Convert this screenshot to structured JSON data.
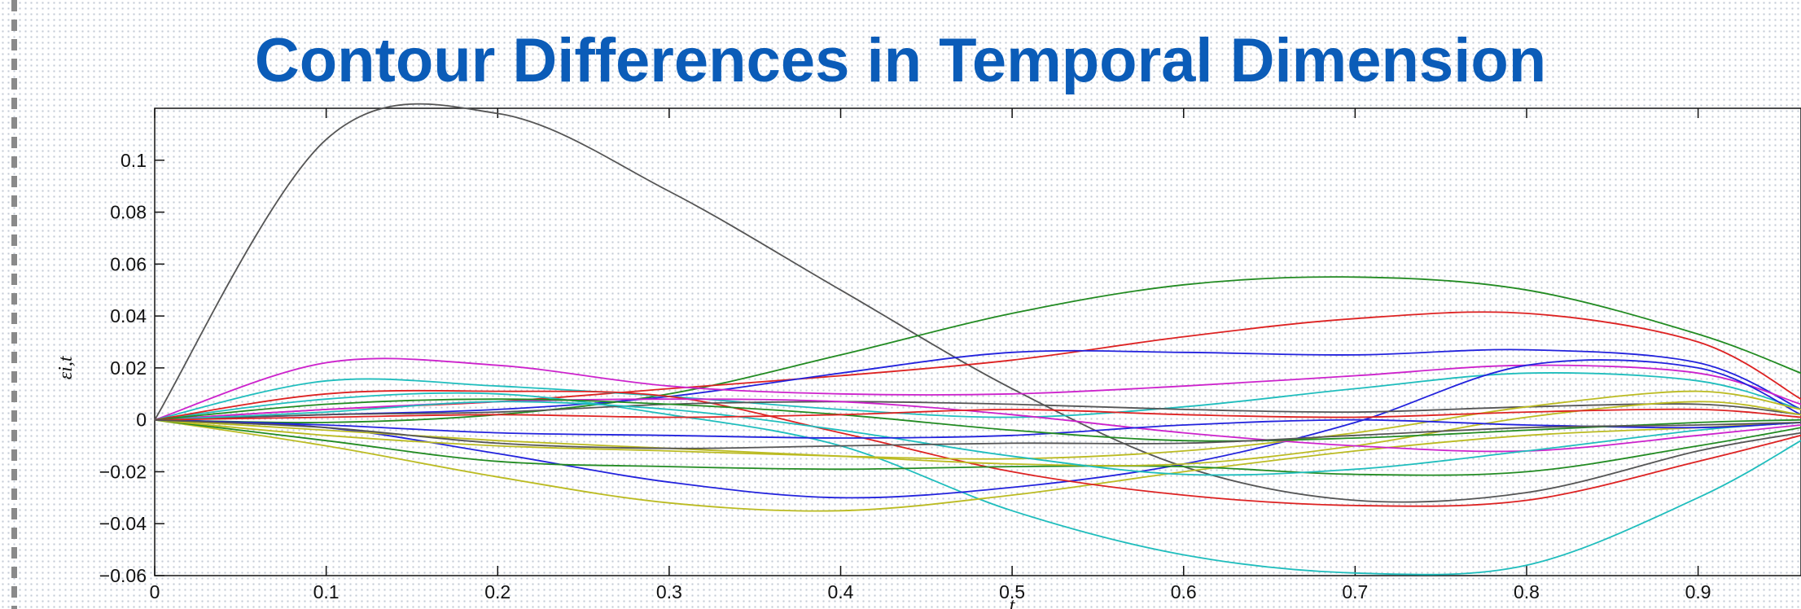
{
  "slide": {
    "title": "Contour Differences in Temporal Dimension"
  },
  "chart_data": {
    "type": "line",
    "title": "",
    "xlabel": "t",
    "ylabel": "εi,t",
    "xlim": [
      0,
      0.96
    ],
    "ylim": [
      -0.06,
      0.12
    ],
    "xticks": [
      "0",
      "0.1",
      "0.2",
      "0.3",
      "0.4",
      "0.5",
      "0.6",
      "0.7",
      "0.8",
      "0.9"
    ],
    "yticks": [
      "−0.06",
      "−0.04",
      "−0.02",
      "0",
      "0.02",
      "0.04",
      "0.06",
      "0.08",
      "0.1"
    ],
    "grid": false,
    "legend": "none",
    "x": [
      0,
      0.1,
      0.2,
      0.3,
      0.4,
      0.5,
      0.6,
      0.7,
      0.8,
      0.9,
      0.96
    ],
    "series": [
      {
        "color": "#555555",
        "values": [
          0,
          0.108,
          0.118,
          0.088,
          0.05,
          0.012,
          -0.018,
          -0.031,
          -0.028,
          -0.012,
          -0.005
        ]
      },
      {
        "color": "#228b22",
        "values": [
          0,
          -0.001,
          0.002,
          0.01,
          0.025,
          0.041,
          0.052,
          0.055,
          0.05,
          0.033,
          0.018
        ]
      },
      {
        "color": "#dd2222",
        "values": [
          0,
          0.004,
          0.007,
          0.012,
          0.017,
          0.023,
          0.032,
          0.039,
          0.041,
          0.03,
          0.008
        ]
      },
      {
        "color": "#2222dd",
        "values": [
          0,
          0.002,
          0.004,
          0.009,
          0.018,
          0.026,
          0.026,
          0.025,
          0.027,
          0.022,
          0.004
        ]
      },
      {
        "color": "#cc22cc",
        "values": [
          0,
          0.022,
          0.021,
          0.013,
          0.01,
          0.01,
          0.013,
          0.017,
          0.021,
          0.018,
          0.006
        ]
      },
      {
        "color": "#1fbdbd",
        "values": [
          0,
          0.015,
          0.013,
          0.009,
          0.004,
          0.001,
          0.005,
          0.012,
          0.018,
          0.015,
          0.004
        ]
      },
      {
        "color": "#1fbdbd",
        "values": [
          0,
          0.008,
          0.01,
          0.002,
          -0.01,
          -0.035,
          -0.052,
          -0.059,
          -0.056,
          -0.03,
          -0.008
        ]
      },
      {
        "color": "#2222dd",
        "values": [
          0,
          -0.003,
          -0.013,
          -0.024,
          -0.03,
          -0.026,
          -0.017,
          -0.001,
          0.021,
          0.02,
          0.002
        ]
      },
      {
        "color": "#bbbb22",
        "values": [
          0,
          -0.01,
          -0.022,
          -0.032,
          -0.035,
          -0.029,
          -0.02,
          -0.012,
          -0.006,
          -0.003,
          -0.001
        ]
      },
      {
        "color": "#dd2222",
        "values": [
          0,
          0.01,
          0.011,
          0.009,
          -0.005,
          -0.02,
          -0.029,
          -0.033,
          -0.031,
          -0.016,
          -0.006
        ]
      },
      {
        "color": "#228b22",
        "values": [
          0,
          -0.008,
          -0.016,
          -0.018,
          -0.019,
          -0.018,
          -0.018,
          -0.021,
          -0.02,
          -0.01,
          -0.003
        ]
      },
      {
        "color": "#555555",
        "values": [
          0,
          0.002,
          0.003,
          0.006,
          0.007,
          0.006,
          0.004,
          0.003,
          0.005,
          0.006,
          0.002
        ]
      },
      {
        "color": "#bbbb22",
        "values": [
          0,
          -0.006,
          -0.01,
          -0.012,
          -0.014,
          -0.015,
          -0.012,
          -0.005,
          0.005,
          0.011,
          0.004
        ]
      },
      {
        "color": "#bbbb22",
        "values": [
          0,
          -0.004,
          -0.008,
          -0.011,
          -0.014,
          -0.017,
          -0.017,
          -0.01,
          0.001,
          0.007,
          0.002
        ]
      },
      {
        "color": "#cc22cc",
        "values": [
          0,
          0.004,
          0.007,
          0.008,
          0.007,
          0.002,
          -0.005,
          -0.01,
          -0.012,
          -0.006,
          -0.002
        ]
      },
      {
        "color": "#1fbdbd",
        "values": [
          0,
          0.003,
          0.007,
          0.004,
          -0.004,
          -0.014,
          -0.021,
          -0.019,
          -0.012,
          -0.004,
          -0.001
        ]
      },
      {
        "color": "#2222dd",
        "values": [
          0,
          -0.002,
          -0.005,
          -0.006,
          -0.007,
          -0.006,
          -0.002,
          0,
          -0.002,
          -0.003,
          -0.001
        ]
      },
      {
        "color": "#228b22",
        "values": [
          0,
          0.006,
          0.008,
          0.006,
          0.002,
          -0.004,
          -0.008,
          -0.007,
          -0.004,
          -0.001,
          0
        ]
      },
      {
        "color": "#dd2222",
        "values": [
          0,
          0.001,
          0.002,
          0.001,
          0.002,
          0.004,
          0.002,
          0.001,
          0.003,
          0.004,
          0.001
        ]
      },
      {
        "color": "#555555",
        "values": [
          0,
          -0.003,
          -0.009,
          -0.011,
          -0.01,
          -0.009,
          -0.009,
          -0.006,
          -0.003,
          -0.002,
          -0.001
        ]
      }
    ]
  }
}
